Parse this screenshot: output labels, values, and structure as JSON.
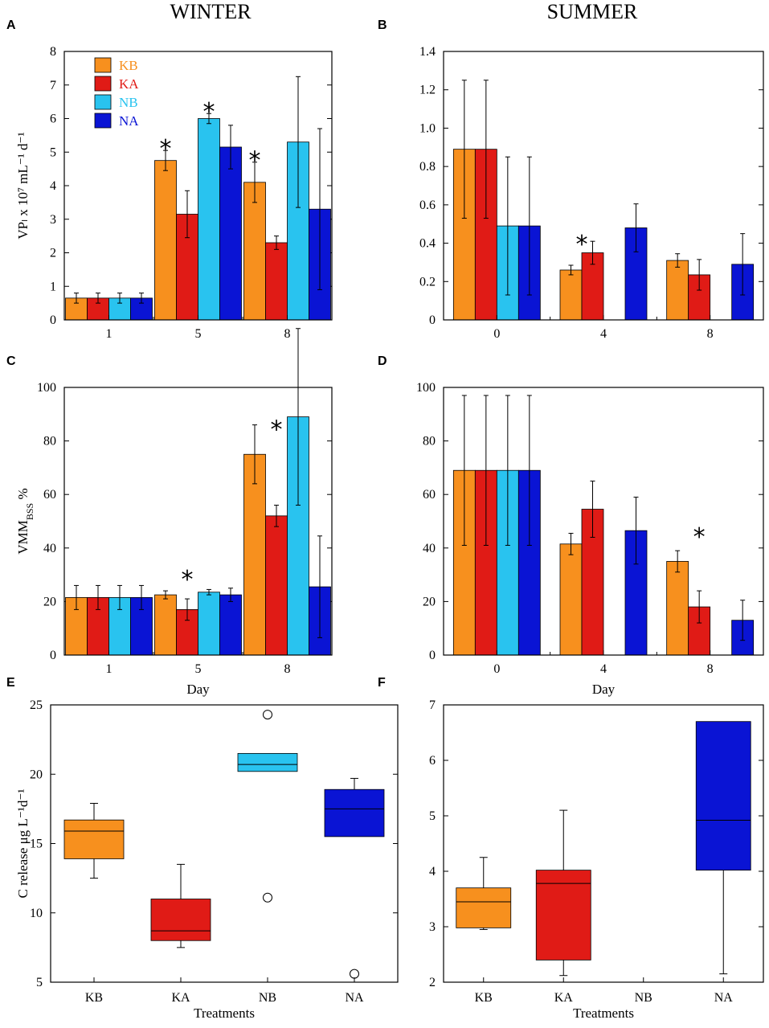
{
  "columns": {
    "left": "WINTER",
    "right": "SUMMER"
  },
  "colors": {
    "KB": "#f7901e",
    "KA": "#e01b16",
    "NB": "#29c3ef",
    "NA": "#0a14d4"
  },
  "chart_data": [
    {
      "id": "A",
      "letter": "A",
      "type": "bar",
      "categories": [
        "1",
        "5",
        "8"
      ],
      "xlabel": "",
      "ylabel": "VPₗ x 10⁷ mL⁻¹ d⁻¹",
      "ylim": [
        0,
        8
      ],
      "yticks": [
        "0",
        "1",
        "2",
        "3",
        "4",
        "5",
        "6",
        "7",
        "8"
      ],
      "legend": [
        "KB",
        "KA",
        "NB",
        "NA"
      ],
      "series": [
        {
          "name": "KB",
          "values": [
            0.65,
            4.75,
            4.1
          ],
          "errors": [
            0.15,
            0.3,
            0.6
          ]
        },
        {
          "name": "KA",
          "values": [
            0.65,
            3.15,
            2.3
          ],
          "errors": [
            0.15,
            0.7,
            0.2
          ]
        },
        {
          "name": "NB",
          "values": [
            0.65,
            6.0,
            5.3
          ],
          "errors": [
            0.15,
            0.15,
            1.95
          ]
        },
        {
          "name": "NA",
          "values": [
            0.65,
            5.15,
            3.3
          ],
          "errors": [
            0.15,
            0.65,
            2.4
          ]
        }
      ],
      "annotations": [
        {
          "text": "*",
          "category": 1,
          "series": 0,
          "y": 5.25
        },
        {
          "text": "*",
          "category": 1,
          "series": 2,
          "y": 6.35
        },
        {
          "text": "*",
          "category": 2,
          "series": 0,
          "y": 4.9
        }
      ]
    },
    {
      "id": "B",
      "letter": "B",
      "type": "bar",
      "categories": [
        "0",
        "4",
        "8"
      ],
      "xlabel": "",
      "ylabel": "",
      "ylim": [
        0,
        1.4
      ],
      "yticks": [
        "0",
        "0.2",
        "0.4",
        "0.6",
        "0.8",
        "1.0",
        "1.2",
        "1.4"
      ],
      "series": [
        {
          "name": "KB",
          "values": [
            0.89,
            0.26,
            0.31
          ],
          "errors": [
            0.36,
            0.025,
            0.035
          ]
        },
        {
          "name": "KA",
          "values": [
            0.89,
            0.35,
            0.235
          ],
          "errors": [
            0.36,
            0.06,
            0.08
          ]
        },
        {
          "name": "NB",
          "values": [
            0.49,
            null,
            null
          ],
          "errors": [
            0.36,
            null,
            null
          ]
        },
        {
          "name": "NA",
          "values": [
            0.49,
            0.48,
            0.29
          ],
          "errors": [
            0.36,
            0.125,
            0.16
          ]
        }
      ],
      "annotations": [
        {
          "text": "*",
          "category": 1,
          "series": 0.5,
          "y": 0.42
        }
      ]
    },
    {
      "id": "C",
      "letter": "C",
      "type": "bar",
      "categories": [
        "1",
        "5",
        "8"
      ],
      "xlabel": "Day",
      "ylabel": "VMMʙₛₛ %",
      "ylabel_main": "VMM",
      "ylabel_sub": "BSS",
      "ylabel_tail": " %",
      "ylim": [
        0,
        100
      ],
      "yticks": [
        "0",
        "20",
        "40",
        "60",
        "80",
        "100"
      ],
      "series": [
        {
          "name": "KB",
          "values": [
            21.5,
            22.5,
            75
          ],
          "errors": [
            4.5,
            1.5,
            11
          ]
        },
        {
          "name": "KA",
          "values": [
            21.5,
            17,
            52
          ],
          "errors": [
            4.5,
            4,
            4
          ]
        },
        {
          "name": "NB",
          "values": [
            21.5,
            23.5,
            89
          ],
          "errors": [
            4.5,
            1,
            33
          ]
        },
        {
          "name": "NA",
          "values": [
            21.5,
            22.5,
            25.5
          ],
          "errors": [
            4.5,
            2.5,
            19
          ]
        }
      ],
      "annotations": [
        {
          "text": "*",
          "category": 1,
          "series": 1,
          "y": 30
        },
        {
          "text": "*",
          "category": 2,
          "series": 1,
          "y": 86
        }
      ]
    },
    {
      "id": "D",
      "letter": "D",
      "type": "bar",
      "categories": [
        "0",
        "4",
        "8"
      ],
      "xlabel": "Day",
      "ylabel": "",
      "ylim": [
        0,
        100
      ],
      "yticks": [
        "0",
        "20",
        "40",
        "60",
        "80",
        "100"
      ],
      "series": [
        {
          "name": "KB",
          "values": [
            69,
            41.5,
            35
          ],
          "errors": [
            28,
            4,
            4
          ]
        },
        {
          "name": "KA",
          "values": [
            69,
            54.5,
            18
          ],
          "errors": [
            28,
            10.5,
            6
          ]
        },
        {
          "name": "NB",
          "values": [
            69,
            null,
            null
          ],
          "errors": [
            28,
            null,
            null
          ]
        },
        {
          "name": "NA",
          "values": [
            69,
            46.5,
            13
          ],
          "errors": [
            28,
            12.5,
            7.5
          ]
        }
      ],
      "annotations": [
        {
          "text": "*",
          "category": 2,
          "series": 1,
          "y": 46
        }
      ]
    },
    {
      "id": "E",
      "letter": "E",
      "type": "box",
      "categories": [
        "KB",
        "KA",
        "NB",
        "NA"
      ],
      "xlabel": "Treatments",
      "ylabel": "C release μg L⁻¹d⁻¹",
      "ylim": [
        5,
        25
      ],
      "yticks": [
        "5",
        "10",
        "15",
        "20",
        "25"
      ],
      "boxes": [
        {
          "name": "KB",
          "whisker_low": 12.5,
          "q1": 13.9,
          "median": 15.9,
          "q3": 16.7,
          "whisker_high": 17.9,
          "outliers": []
        },
        {
          "name": "KA",
          "whisker_low": 7.5,
          "q1": 8.0,
          "median": 8.7,
          "q3": 11.0,
          "whisker_high": 13.5,
          "outliers": []
        },
        {
          "name": "NB",
          "whisker_low": null,
          "q1": 20.2,
          "median": 20.7,
          "q3": 21.5,
          "whisker_high": null,
          "outliers": [
            24.3,
            11.1
          ]
        },
        {
          "name": "NA",
          "whisker_low": null,
          "q1": 15.5,
          "median": 17.5,
          "q3": 18.9,
          "whisker_high": 19.7,
          "outliers": [
            5.6
          ]
        }
      ]
    },
    {
      "id": "F",
      "letter": "F",
      "type": "box",
      "categories": [
        "KB",
        "KA",
        "NB",
        "NA"
      ],
      "xlabel": "Treatments",
      "ylabel": "",
      "ylim": [
        2,
        7
      ],
      "yticks": [
        "2",
        "3",
        "4",
        "5",
        "6",
        "7"
      ],
      "boxes": [
        {
          "name": "KB",
          "whisker_low": 2.95,
          "q1": 2.98,
          "median": 3.45,
          "q3": 3.7,
          "whisker_high": 4.25,
          "outliers": []
        },
        {
          "name": "KA",
          "whisker_low": 2.12,
          "q1": 2.4,
          "median": 3.78,
          "q3": 4.02,
          "whisker_high": 5.1,
          "outliers": []
        },
        {
          "name": "NB",
          "whisker_low": null,
          "q1": null,
          "median": null,
          "q3": null,
          "whisker_high": null,
          "outliers": []
        },
        {
          "name": "NA",
          "whisker_low": 2.15,
          "q1": 4.02,
          "median": 4.92,
          "q3": 6.7,
          "whisker_high": null,
          "outliers": []
        }
      ]
    }
  ]
}
